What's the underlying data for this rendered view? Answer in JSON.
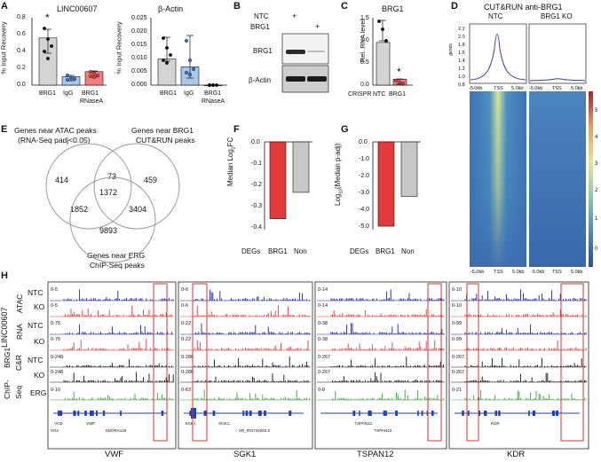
{
  "panels": {
    "a": "A",
    "b": "B",
    "c": "C",
    "d": "D",
    "e": "E",
    "f": "F",
    "g": "G",
    "h": "H"
  },
  "colors": {
    "brg1_bar": "#d4d4d4",
    "igg_bar": "#a9c7e9",
    "rnase_bar": "#f07e7e",
    "red": "#e53a3a",
    "gray": "#c7c7c7",
    "blue": "#1f1fa0",
    "green": "#3aa33a",
    "black": "#111111",
    "box": "#d9342b",
    "profile": "#3a3aa8"
  },
  "a": {
    "left": {
      "title": "LINC00607",
      "ylabel": "% Input Recovery",
      "yticks": [
        "0.0",
        "0.2",
        "0.4",
        "0.6",
        "0.8"
      ],
      "categories": [
        "BRG1",
        "IgG",
        "BRG1"
      ],
      "sub": "RNaseA",
      "star": "*"
    },
    "right": {
      "title": "β-Actin",
      "ylabel": "% Input Recovery",
      "yticks": [
        "0.000",
        "0.005",
        "0.010",
        "0.015",
        "0.020",
        "0.025"
      ],
      "categories": [
        "BRG1",
        "IgG",
        "BRG1"
      ],
      "sub": "RNaseA"
    }
  },
  "b": {
    "ntc": "NTC",
    "brg1": "BRG1",
    "plus": "+",
    "band1": "BRG1",
    "band2": "β-Actin"
  },
  "c": {
    "title": "BRG1",
    "ylabel": "Rel. RNA level",
    "yticks": [
      "0.0",
      "0.5",
      "1.0",
      "1.5"
    ],
    "xlabel": "CRISPR",
    "categories": [
      "NTC",
      "BRG1"
    ],
    "star": "*"
  },
  "d": {
    "title": "CUT&RUN anti-BRG1",
    "ntc": "NTC",
    "ko": "BRG1 KO",
    "ylabel": "genes",
    "yticks": [
      "2.2",
      "2.0",
      "1.8",
      "1.6",
      "1.4",
      "1.2",
      "1.0",
      "0.8"
    ],
    "xticks": [
      "-5.0kb",
      "TSS",
      "5.0kb"
    ],
    "scale": [
      "5",
      "4",
      "3",
      "2",
      "1",
      "0"
    ]
  },
  "e": {
    "title1": "Genes near ATAC peaks",
    "title1b": "(RNA-Seq padj<0.05)",
    "title2": "Genes near BRG1",
    "title2b": "CUT&RUN peaks",
    "title3": "Genes near ERG",
    "title3b": "ChIP-Seq peaks",
    "n414": "414",
    "n73": "73",
    "n459": "459",
    "n1372": "1372",
    "n1852": "1852",
    "n3404": "3404",
    "n9893": "9893"
  },
  "f": {
    "ylabel": "Median Log",
    "ysub": "2",
    "ysuffix": "FC",
    "yticks": [
      "0.0",
      "-0.1",
      "-0.2",
      "-0.3",
      "-0.4"
    ],
    "xlabel": "DEGs",
    "categories": [
      "BRG1",
      "Non"
    ]
  },
  "g": {
    "ylabel": "Log",
    "ysub": "10",
    "ysuffix": "(Median p-adj)",
    "yticks": [
      "0.0",
      "-1.0",
      "-2.0",
      "-3.0",
      "-4.0",
      "-5.0"
    ],
    "xlabel": "DEGs",
    "categories": [
      "BRG1",
      "Non"
    ]
  },
  "h": {
    "group1": "LINC00607",
    "group2": "BRG1",
    "group2b": "C&R",
    "group3": "ChIP-",
    "group3b": "Seq",
    "sub_atac": "ATAC",
    "sub_rna": "RNA",
    "row_labels": [
      "NTC",
      "KO",
      "NTC",
      "KO",
      "NTC",
      "KO",
      "ERG"
    ],
    "genes": [
      {
        "name": "VWF",
        "scales": [
          "0-5",
          "0-5",
          "0-75",
          "0-75",
          "0-248",
          "0-248",
          "0-19"
        ],
        "ann1": "VWF",
        "ann2": "SNORA125",
        "ann3": "VO2",
        "ann4": "VO2"
      },
      {
        "name": "SGK1",
        "scales": [
          "0-6",
          "0-6",
          "0-22",
          "0-22",
          "0-286",
          "0-286",
          "0-63"
        ],
        "ann1": "SGK1",
        "ann2": "XR_001744262.2",
        "ann3": "SGK1",
        "ann4": ""
      },
      {
        "name": "TSPAN12",
        "scales": [
          "0-14",
          "0-14",
          "0-38",
          "0-38",
          "0-267",
          "0-267",
          "0-8"
        ],
        "ann1": "TSPAN12",
        "ann2": "TSPAN12",
        "ann3": "",
        "ann4": ""
      },
      {
        "name": "KDR",
        "scales": [
          "0-10",
          "0-10",
          "0-99",
          "0-99",
          "0-267",
          "0-267",
          "0-21"
        ],
        "ann1": "KDR",
        "ann2": "",
        "ann3": "",
        "ann4": ""
      }
    ]
  },
  "chart_data": [
    {
      "panel": "A-left",
      "type": "bar",
      "title": "LINC00607",
      "ylabel": "% Input Recovery",
      "categories": [
        "BRG1",
        "IgG",
        "BRG1 RNaseA"
      ],
      "values": [
        0.56,
        0.1,
        0.16
      ],
      "ylim": [
        0,
        0.8
      ]
    },
    {
      "panel": "A-right",
      "type": "bar",
      "title": "β-Actin",
      "ylabel": "% Input Recovery",
      "categories": [
        "BRG1",
        "IgG",
        "BRG1 RNaseA"
      ],
      "values": [
        0.0097,
        0.0068,
        0.0
      ],
      "ylim": [
        0,
        0.025
      ]
    },
    {
      "panel": "C",
      "type": "bar",
      "title": "BRG1",
      "ylabel": "Rel. RNA level",
      "xlabel": "CRISPR",
      "categories": [
        "NTC",
        "BRG1"
      ],
      "values": [
        0.95,
        0.13
      ],
      "ylim": [
        0,
        1.5
      ]
    },
    {
      "panel": "F",
      "type": "bar",
      "ylabel": "Median Log2FC",
      "xlabel": "DEGs",
      "categories": [
        "BRG1",
        "Non"
      ],
      "values": [
        -0.35,
        -0.23
      ],
      "ylim": [
        -0.4,
        0.0
      ]
    },
    {
      "panel": "G",
      "type": "bar",
      "ylabel": "Log10(Median p-adj)",
      "xlabel": "DEGs",
      "categories": [
        "BRG1",
        "Non"
      ],
      "values": [
        -4.8,
        -3.1
      ],
      "ylim": [
        -5.0,
        0.0
      ]
    }
  ]
}
